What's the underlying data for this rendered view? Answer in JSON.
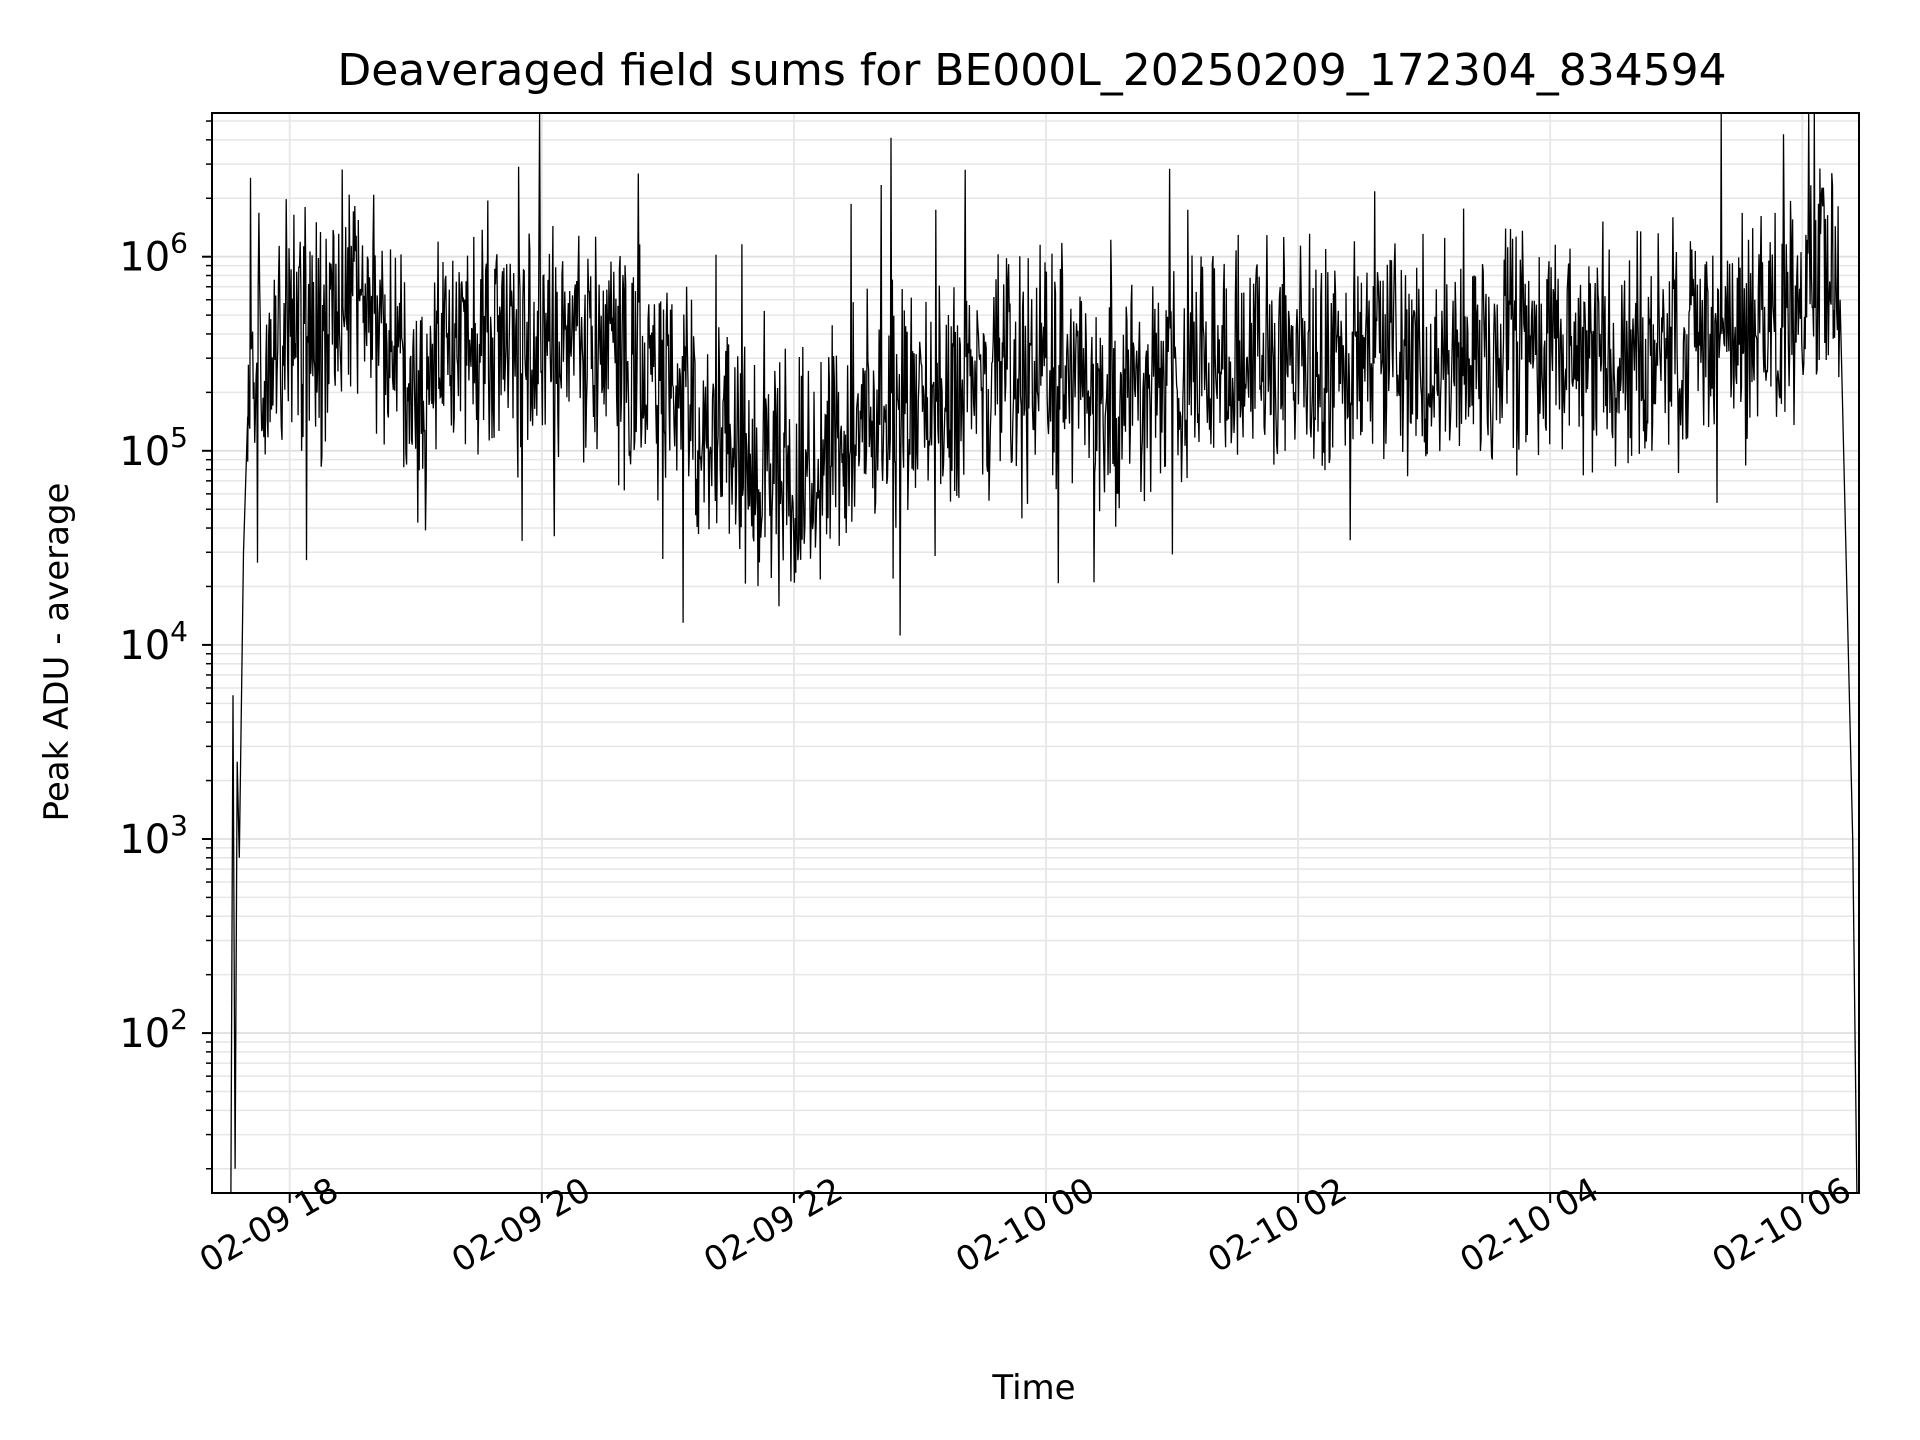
{
  "chart_data": {
    "type": "line",
    "title": "Deaveraged field sums for BE000L_20250209_172304_834594",
    "xlabel": "Time",
    "ylabel": "Peak ADU - average",
    "yscale": "log",
    "ylim": [
      15,
      5500000
    ],
    "xlim": [
      "2025-02-09 17:23",
      "2025-02-10 06:27"
    ],
    "grid": true,
    "line_color": "#000000",
    "x_ticks": [
      {
        "time": "2025-02-09 18:00",
        "label": "02-09 18"
      },
      {
        "time": "2025-02-09 20:00",
        "label": "02-09 20"
      },
      {
        "time": "2025-02-09 22:00",
        "label": "02-09 22"
      },
      {
        "time": "2025-02-10 00:00",
        "label": "02-10 00"
      },
      {
        "time": "2025-02-10 02:00",
        "label": "02-10 02"
      },
      {
        "time": "2025-02-10 04:00",
        "label": "02-10 04"
      },
      {
        "time": "2025-02-10 06:00",
        "label": "02-10 06"
      }
    ],
    "y_ticks": [
      {
        "value": 100,
        "base": "10",
        "exp": "2"
      },
      {
        "value": 1000,
        "base": "10",
        "exp": "3"
      },
      {
        "value": 10000,
        "base": "10",
        "exp": "4"
      },
      {
        "value": 100000,
        "base": "10",
        "exp": "5"
      },
      {
        "value": 1000000,
        "base": "10",
        "exp": "6"
      }
    ],
    "series": [
      {
        "x": [
          "2025-02-09 17:32",
          "2025-02-09 17:33",
          "2025-02-09 17:34",
          "2025-02-09 17:35",
          "2025-02-09 17:36",
          "2025-02-09 17:38",
          "2025-02-09 17:40",
          "2025-02-09 17:42",
          "2025-02-09 17:45",
          "2025-02-09 17:50",
          "2025-02-09 18:00",
          "2025-02-09 18:15",
          "2025-02-09 18:30",
          "2025-02-09 18:45",
          "2025-02-09 19:00",
          "2025-02-09 19:15",
          "2025-02-09 19:30",
          "2025-02-09 19:45",
          "2025-02-09 20:00",
          "2025-02-09 20:30",
          "2025-02-09 21:00",
          "2025-02-09 21:30",
          "2025-02-09 22:00",
          "2025-02-09 22:30",
          "2025-02-09 23:00",
          "2025-02-09 23:30",
          "2025-02-10 00:00",
          "2025-02-10 00:30",
          "2025-02-10 01:00",
          "2025-02-10 01:30",
          "2025-02-10 02:00",
          "2025-02-10 03:00",
          "2025-02-10 04:00",
          "2025-02-10 05:00",
          "2025-02-10 05:40",
          "2025-02-10 06:00",
          "2025-02-10 06:10",
          "2025-02-10 06:18",
          "2025-02-10 06:24",
          "2025-02-10 06:26"
        ],
        "y": [
          15,
          5500,
          20,
          2500,
          800,
          30000,
          150000,
          250000,
          300000,
          200000,
          500000,
          300000,
          800000,
          450000,
          150000,
          500000,
          400000,
          350000,
          300000,
          350000,
          200000,
          100000,
          70000,
          150000,
          200000,
          250000,
          300000,
          150000,
          250000,
          280000,
          300000,
          320000,
          350000,
          330000,
          380000,
          700000,
          800000,
          600000,
          1000,
          15
        ]
      }
    ]
  }
}
